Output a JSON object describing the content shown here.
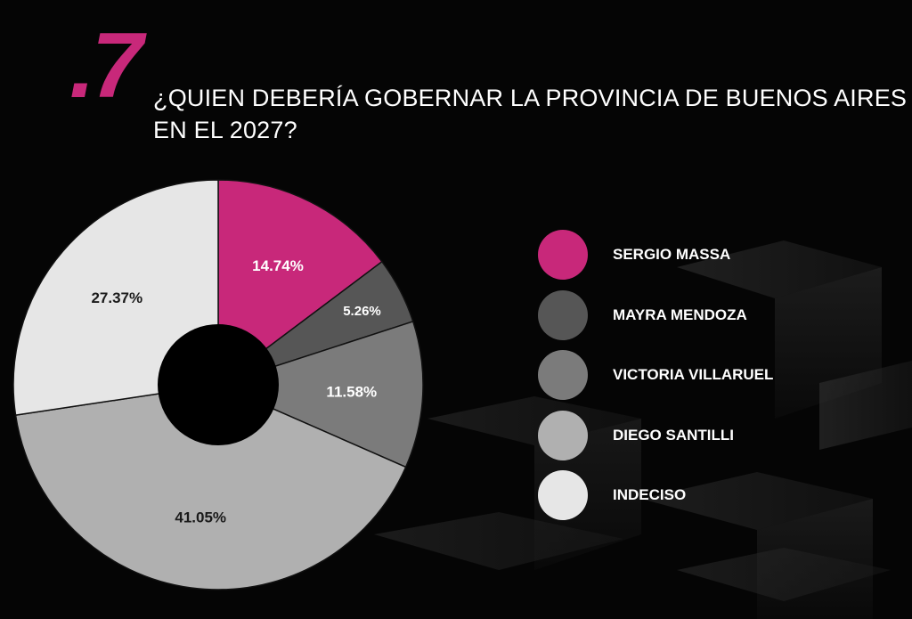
{
  "header": {
    "number": ".7",
    "title_line1": "¿QUIEN DEBERÍA GOBERNAR LA PROVINCIA DE BUENOS AIRES",
    "title_line2": "EN EL 2027?"
  },
  "colors": {
    "accent": "#c8287a",
    "background": "#050505",
    "text": "#ffffff",
    "hole": "#000000"
  },
  "chart_data": {
    "type": "pie",
    "style": "donut",
    "legend_position": "right",
    "categories": [
      "SERGIO MASSA",
      "MAYRA MENDOZA",
      "VICTORIA VILLARUEL",
      "DIEGO SANTILLI",
      "INDECISO"
    ],
    "values": [
      14.74,
      5.26,
      11.58,
      41.05,
      27.37
    ],
    "labels": [
      "14.74%",
      "5.26%",
      "11.58%",
      "41.05%",
      "27.37%"
    ],
    "colors": [
      "#c8287a",
      "#565656",
      "#7b7b7b",
      "#b0b0b0",
      "#e6e6e6"
    ],
    "label_colors": [
      "#ffffff",
      "#ffffff",
      "#ffffff",
      "#1a1a1a",
      "#1a1a1a"
    ]
  }
}
